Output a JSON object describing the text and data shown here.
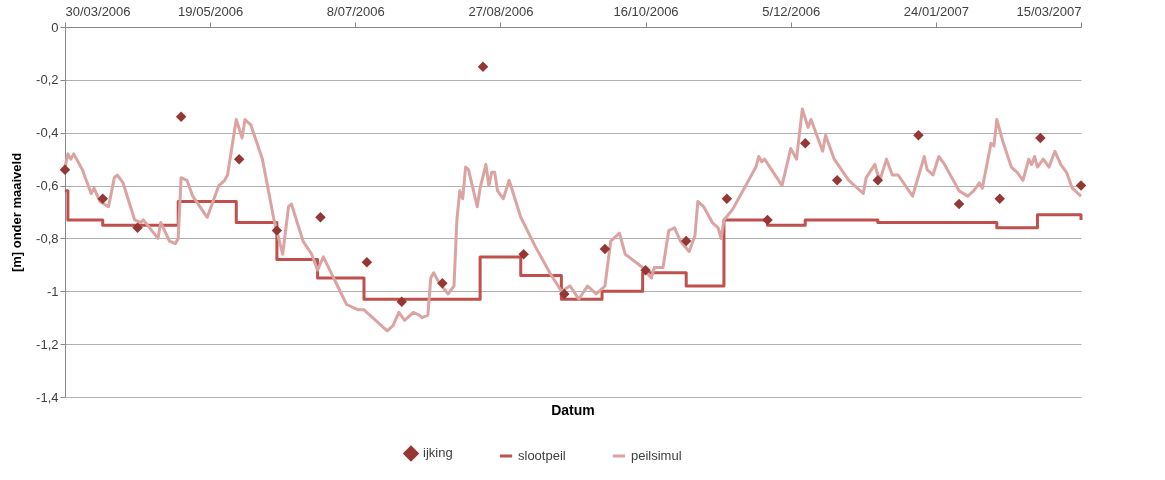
{
  "chart_data": {
    "type": "line",
    "xlabel": "Datum",
    "ylabel": "[m] onder maaiveld",
    "xlim": [
      "2006-03-30",
      "2007-03-15"
    ],
    "xticks": [
      {
        "value": "2006-03-30",
        "label": "30/03/2006"
      },
      {
        "value": "2006-05-19",
        "label": "19/05/2006"
      },
      {
        "value": "2006-07-08",
        "label": "8/07/2006"
      },
      {
        "value": "2006-08-27",
        "label": "27/08/2006"
      },
      {
        "value": "2006-10-16",
        "label": "16/10/2006"
      },
      {
        "value": "2006-12-05",
        "label": "5/12/2006"
      },
      {
        "value": "2007-01-24",
        "label": "24/01/2007"
      },
      {
        "value": "2007-03-15",
        "label": "15/03/2007"
      }
    ],
    "ylim": [
      -1.4,
      0
    ],
    "yticks": [
      0,
      {
        "value": -0.2,
        "label": "-0,2"
      },
      {
        "value": -0.4,
        "label": "-0,4"
      },
      {
        "value": -0.6,
        "label": "-0,6"
      },
      {
        "value": -0.8,
        "label": "-0,8"
      },
      {
        "value": -1,
        "label": "-1"
      },
      {
        "value": -1.2,
        "label": "-1,2"
      },
      {
        "value": -1.4,
        "label": "-1,4"
      }
    ],
    "grid": "y",
    "legend": "bottom",
    "line_style": "solid",
    "series": [
      {
        "name": "ijking",
        "type": "scatter",
        "marker": "diamond",
        "color": "#953735",
        "x": [
          "2006-03-30",
          "2006-04-12",
          "2006-04-24",
          "2006-05-09",
          "2006-05-29",
          "2006-06-11",
          "2006-06-26",
          "2006-07-12",
          "2006-07-24",
          "2006-08-07",
          "2006-08-21",
          "2006-09-04",
          "2006-09-18",
          "2006-10-02",
          "2006-10-16",
          "2006-10-30",
          "2006-11-13",
          "2006-11-27",
          "2006-12-10",
          "2006-12-21",
          "2007-01-04",
          "2007-01-18",
          "2007-02-01",
          "2007-02-15",
          "2007-03-01",
          "2007-03-15"
        ],
        "values": [
          -0.54,
          -0.65,
          -0.76,
          -0.34,
          -0.5,
          -0.77,
          -0.72,
          -0.89,
          -1.04,
          -0.97,
          -0.15,
          -0.86,
          -1.01,
          -0.84,
          -0.92,
          -0.81,
          -0.65,
          -0.73,
          -0.44,
          -0.58,
          -0.58,
          -0.41,
          -0.67,
          -0.65,
          -0.42,
          -0.6
        ]
      },
      {
        "name": "slootpeil",
        "type": "step",
        "color": "#c0504d",
        "x": [
          "2006-03-30",
          "2006-03-31",
          "2006-04-12",
          "2006-05-08",
          "2006-05-28",
          "2006-06-11",
          "2006-06-25",
          "2006-07-11",
          "2006-08-20",
          "2006-09-03",
          "2006-09-17",
          "2006-10-01",
          "2006-10-15",
          "2006-10-30",
          "2006-11-12",
          "2006-11-27",
          "2006-12-10",
          "2007-01-04",
          "2007-02-14",
          "2007-02-28",
          "2007-03-15"
        ],
        "values": [
          -0.62,
          -0.73,
          -0.75,
          -0.66,
          -0.74,
          -0.88,
          -0.95,
          -1.03,
          -0.87,
          -0.94,
          -1.03,
          -1.0,
          -0.93,
          -0.98,
          -0.73,
          -0.75,
          -0.73,
          -0.74,
          -0.76,
          -0.71,
          -0.73
        ]
      },
      {
        "name": "peilsimul",
        "color": "#dba3a1",
        "x": [
          "2006-03-30",
          "2006-03-31",
          "2006-04-01",
          "2006-04-02",
          "2006-04-05",
          "2006-04-08",
          "2006-04-09",
          "2006-04-11",
          "2006-04-14",
          "2006-04-16",
          "2006-04-17",
          "2006-04-19",
          "2006-04-23",
          "2006-04-25",
          "2006-04-26",
          "2006-05-01",
          "2006-05-02",
          "2006-05-05",
          "2006-05-07",
          "2006-05-08",
          "2006-05-09",
          "2006-05-11",
          "2006-05-13",
          "2006-05-18",
          "2006-05-22",
          "2006-05-24",
          "2006-05-25",
          "2006-05-28",
          "2006-05-30",
          "2006-05-31",
          "2006-06-02",
          "2006-06-06",
          "2006-06-10",
          "2006-06-13",
          "2006-06-15",
          "2006-06-16",
          "2006-06-20",
          "2006-06-23",
          "2006-06-25",
          "2006-06-27",
          "2006-07-05",
          "2006-07-09",
          "2006-07-11",
          "2006-07-15",
          "2006-07-19",
          "2006-07-21",
          "2006-07-23",
          "2006-07-25",
          "2006-07-28",
          "2006-07-30",
          "2006-07-31",
          "2006-08-02",
          "2006-08-03",
          "2006-08-04",
          "2006-08-06",
          "2006-08-09",
          "2006-08-11",
          "2006-08-12",
          "2006-08-13",
          "2006-08-14",
          "2006-08-15",
          "2006-08-16",
          "2006-08-19",
          "2006-08-20",
          "2006-08-22",
          "2006-08-23",
          "2006-08-24",
          "2006-08-25",
          "2006-08-26",
          "2006-08-28",
          "2006-08-30",
          "2006-09-03",
          "2006-09-08",
          "2006-09-13",
          "2006-09-17",
          "2006-09-20",
          "2006-09-23",
          "2006-09-26",
          "2006-09-29",
          "2006-10-02",
          "2006-10-04",
          "2006-10-07",
          "2006-10-09",
          "2006-10-15",
          "2006-10-18",
          "2006-10-19",
          "2006-10-22",
          "2006-10-24",
          "2006-10-26",
          "2006-10-28",
          "2006-10-31",
          "2006-11-02",
          "2006-11-03",
          "2006-11-05",
          "2006-11-08",
          "2006-11-10",
          "2006-11-11",
          "2006-11-12",
          "2006-11-15",
          "2006-11-18",
          "2006-11-21",
          "2006-11-23",
          "2006-11-24",
          "2006-11-25",
          "2006-11-26",
          "2006-11-29",
          "2006-12-02",
          "2006-12-05",
          "2006-12-07",
          "2006-12-09",
          "2006-12-11",
          "2006-12-12",
          "2006-12-16",
          "2006-12-17",
          "2006-12-20",
          "2006-12-25",
          "2006-12-30",
          "2006-12-31",
          "2007-01-03",
          "2007-01-04",
          "2007-01-05",
          "2007-01-07",
          "2007-01-09",
          "2007-01-11",
          "2007-01-16",
          "2007-01-20",
          "2007-01-21",
          "2007-01-23",
          "2007-01-25",
          "2007-01-27",
          "2007-02-01",
          "2007-02-04",
          "2007-02-06",
          "2007-02-08",
          "2007-02-09",
          "2007-02-12",
          "2007-02-13",
          "2007-02-14",
          "2007-02-16",
          "2007-02-19",
          "2007-02-21",
          "2007-02-23",
          "2007-02-25",
          "2007-02-26",
          "2007-02-27",
          "2007-02-28",
          "2007-03-02",
          "2007-03-04",
          "2007-03-06",
          "2007-03-08",
          "2007-03-10",
          "2007-03-12",
          "2007-03-15"
        ],
        "values": [
          -0.53,
          -0.48,
          -0.5,
          -0.48,
          -0.54,
          -0.63,
          -0.61,
          -0.66,
          -0.68,
          -0.57,
          -0.56,
          -0.59,
          -0.73,
          -0.74,
          -0.73,
          -0.8,
          -0.74,
          -0.81,
          -0.82,
          -0.8,
          -0.57,
          -0.58,
          -0.64,
          -0.72,
          -0.6,
          -0.58,
          -0.56,
          -0.35,
          -0.42,
          -0.35,
          -0.37,
          -0.5,
          -0.73,
          -0.86,
          -0.68,
          -0.67,
          -0.81,
          -0.86,
          -0.92,
          -0.87,
          -1.05,
          -1.07,
          -1.07,
          -1.11,
          -1.15,
          -1.13,
          -1.08,
          -1.11,
          -1.08,
          -1.09,
          -1.1,
          -1.09,
          -0.95,
          -0.93,
          -0.97,
          -1.01,
          -0.98,
          -0.73,
          -0.62,
          -0.65,
          -0.53,
          -0.54,
          -0.68,
          -0.61,
          -0.52,
          -0.6,
          -0.55,
          -0.55,
          -0.62,
          -0.65,
          -0.58,
          -0.72,
          -0.83,
          -0.93,
          -1.0,
          -0.98,
          -1.03,
          -0.98,
          -1.01,
          -0.98,
          -0.81,
          -0.78,
          -0.86,
          -0.91,
          -0.95,
          -0.91,
          -0.91,
          -0.77,
          -0.76,
          -0.81,
          -0.85,
          -0.79,
          -0.66,
          -0.68,
          -0.74,
          -0.76,
          -0.8,
          -0.73,
          -0.69,
          -0.63,
          -0.57,
          -0.53,
          -0.49,
          -0.51,
          -0.5,
          -0.55,
          -0.6,
          -0.46,
          -0.5,
          -0.31,
          -0.38,
          -0.35,
          -0.47,
          -0.41,
          -0.5,
          -0.58,
          -0.63,
          -0.57,
          -0.52,
          -0.56,
          -0.57,
          -0.5,
          -0.56,
          -0.56,
          -0.64,
          -0.49,
          -0.54,
          -0.56,
          -0.49,
          -0.52,
          -0.62,
          -0.64,
          -0.62,
          -0.59,
          -0.61,
          -0.44,
          -0.45,
          -0.35,
          -0.43,
          -0.53,
          -0.55,
          -0.58,
          -0.5,
          -0.52,
          -0.49,
          -0.53,
          -0.5,
          -0.53,
          -0.47,
          -0.52,
          -0.55,
          -0.61,
          -0.64
        ]
      }
    ]
  }
}
